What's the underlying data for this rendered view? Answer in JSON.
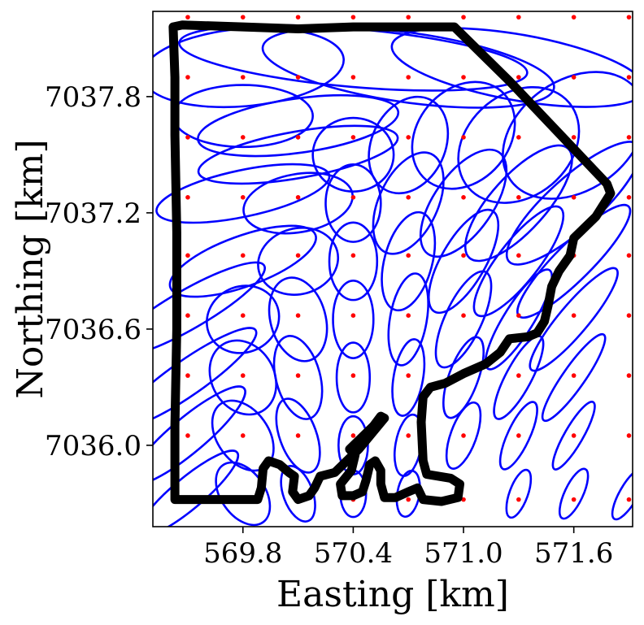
{
  "chart_data": {
    "type": "scatter",
    "xlabel": "Easting [km]",
    "ylabel": "Northing [km]",
    "xlim": [
      569.31,
      571.92
    ],
    "ylim": [
      7035.58,
      7038.24
    ],
    "xticks": [
      569.8,
      570.4,
      571.0,
      571.6
    ],
    "xtick_labels": [
      "569.8",
      "570.4",
      "571.0",
      "571.6"
    ],
    "yticks": [
      7036.0,
      7036.6,
      7037.2,
      7037.8
    ],
    "ytick_labels": [
      "7036.0",
      "7036.6",
      "7037.2",
      "7037.8"
    ],
    "grid": false,
    "colors": {
      "points": "#ff0000",
      "ellipses": "#0000ff",
      "boundary": "#000000"
    },
    "grid_points": {
      "x": [
        569.5,
        569.8,
        570.1,
        570.4,
        570.7,
        571.0,
        571.3,
        571.6,
        571.9
      ],
      "y": [
        7035.72,
        7036.05,
        7036.36,
        7036.67,
        7036.98,
        7037.28,
        7037.59,
        7037.9,
        7038.21
      ]
    },
    "ellipses": [
      {
        "x": 570.4,
        "y": 7038.0,
        "rx": 0.95,
        "ry": 0.15,
        "angle": -5
      },
      {
        "x": 570.7,
        "y": 7037.95,
        "rx": 0.8,
        "ry": 0.18,
        "angle": -8
      },
      {
        "x": 569.8,
        "y": 7037.95,
        "rx": 0.55,
        "ry": 0.2,
        "angle": 5
      },
      {
        "x": 571.3,
        "y": 7037.95,
        "rx": 0.7,
        "ry": 0.17,
        "angle": -10
      },
      {
        "x": 570.1,
        "y": 7037.65,
        "rx": 0.55,
        "ry": 0.14,
        "angle": 8
      },
      {
        "x": 570.4,
        "y": 7037.5,
        "rx": 0.22,
        "ry": 0.19,
        "angle": 0
      },
      {
        "x": 570.1,
        "y": 7037.5,
        "rx": 0.55,
        "ry": 0.12,
        "angle": 10
      },
      {
        "x": 569.8,
        "y": 7037.7,
        "rx": 0.38,
        "ry": 0.16,
        "angle": 0
      },
      {
        "x": 570.7,
        "y": 7037.55,
        "rx": 0.2,
        "ry": 0.26,
        "angle": -25
      },
      {
        "x": 571.0,
        "y": 7037.6,
        "rx": 0.25,
        "ry": 0.3,
        "angle": -40
      },
      {
        "x": 571.3,
        "y": 7037.55,
        "rx": 0.28,
        "ry": 0.34,
        "angle": -50
      },
      {
        "x": 571.6,
        "y": 7037.6,
        "rx": 0.3,
        "ry": 0.4,
        "angle": -55
      },
      {
        "x": 569.8,
        "y": 7037.3,
        "rx": 0.48,
        "ry": 0.12,
        "angle": 12
      },
      {
        "x": 570.1,
        "y": 7037.25,
        "rx": 0.3,
        "ry": 0.15,
        "angle": 10
      },
      {
        "x": 570.4,
        "y": 7037.25,
        "rx": 0.15,
        "ry": 0.2,
        "angle": 0
      },
      {
        "x": 570.7,
        "y": 7037.25,
        "rx": 0.16,
        "ry": 0.28,
        "angle": -25
      },
      {
        "x": 571.0,
        "y": 7037.25,
        "rx": 0.16,
        "ry": 0.32,
        "angle": -35
      },
      {
        "x": 571.3,
        "y": 7037.25,
        "rx": 0.15,
        "ry": 0.38,
        "angle": -42
      },
      {
        "x": 571.6,
        "y": 7037.25,
        "rx": 0.14,
        "ry": 0.45,
        "angle": -48
      },
      {
        "x": 569.8,
        "y": 7036.95,
        "rx": 0.42,
        "ry": 0.13,
        "angle": 20
      },
      {
        "x": 570.1,
        "y": 7036.95,
        "rx": 0.22,
        "ry": 0.17,
        "angle": 15
      },
      {
        "x": 570.4,
        "y": 7036.95,
        "rx": 0.13,
        "ry": 0.2,
        "angle": 0
      },
      {
        "x": 570.7,
        "y": 7036.95,
        "rx": 0.13,
        "ry": 0.26,
        "angle": -15
      },
      {
        "x": 571.0,
        "y": 7036.95,
        "rx": 0.12,
        "ry": 0.3,
        "angle": -30
      },
      {
        "x": 571.3,
        "y": 7036.95,
        "rx": 0.11,
        "ry": 0.35,
        "angle": -38
      },
      {
        "x": 571.6,
        "y": 7036.95,
        "rx": 0.1,
        "ry": 0.4,
        "angle": -45
      },
      {
        "x": 569.5,
        "y": 7036.7,
        "rx": 0.48,
        "ry": 0.1,
        "angle": 30
      },
      {
        "x": 569.8,
        "y": 7036.65,
        "rx": 0.2,
        "ry": 0.17,
        "angle": 25
      },
      {
        "x": 570.1,
        "y": 7036.65,
        "rx": 0.15,
        "ry": 0.22,
        "angle": 15
      },
      {
        "x": 570.4,
        "y": 7036.65,
        "rx": 0.11,
        "ry": 0.2,
        "angle": 0
      },
      {
        "x": 570.7,
        "y": 7036.65,
        "rx": 0.1,
        "ry": 0.24,
        "angle": -10
      },
      {
        "x": 571.0,
        "y": 7036.65,
        "rx": 0.1,
        "ry": 0.27,
        "angle": -25
      },
      {
        "x": 571.3,
        "y": 7036.65,
        "rx": 0.08,
        "ry": 0.3,
        "angle": -32
      },
      {
        "x": 571.6,
        "y": 7036.65,
        "rx": 0.08,
        "ry": 0.34,
        "angle": -40
      },
      {
        "x": 569.5,
        "y": 7036.35,
        "rx": 0.45,
        "ry": 0.09,
        "angle": 35
      },
      {
        "x": 569.8,
        "y": 7036.35,
        "rx": 0.17,
        "ry": 0.2,
        "angle": 30
      },
      {
        "x": 570.1,
        "y": 7036.35,
        "rx": 0.12,
        "ry": 0.22,
        "angle": 15
      },
      {
        "x": 570.4,
        "y": 7036.35,
        "rx": 0.09,
        "ry": 0.18,
        "angle": 0
      },
      {
        "x": 570.7,
        "y": 7036.35,
        "rx": 0.08,
        "ry": 0.2,
        "angle": -10
      },
      {
        "x": 571.0,
        "y": 7036.35,
        "rx": 0.08,
        "ry": 0.22,
        "angle": -20
      },
      {
        "x": 571.3,
        "y": 7036.35,
        "rx": 0.07,
        "ry": 0.24,
        "angle": -28
      },
      {
        "x": 571.6,
        "y": 7036.35,
        "rx": 0.06,
        "ry": 0.27,
        "angle": -35
      },
      {
        "x": 569.5,
        "y": 7036.05,
        "rx": 0.4,
        "ry": 0.09,
        "angle": 40
      },
      {
        "x": 569.8,
        "y": 7036.05,
        "rx": 0.14,
        "ry": 0.2,
        "angle": 35
      },
      {
        "x": 570.1,
        "y": 7036.05,
        "rx": 0.1,
        "ry": 0.2,
        "angle": 20
      },
      {
        "x": 570.4,
        "y": 7036.0,
        "rx": 0.08,
        "ry": 0.15,
        "angle": 0
      },
      {
        "x": 570.7,
        "y": 7036.0,
        "rx": 0.07,
        "ry": 0.16,
        "angle": -10
      },
      {
        "x": 571.0,
        "y": 7036.05,
        "rx": 0.07,
        "ry": 0.18,
        "angle": -20
      },
      {
        "x": 571.3,
        "y": 7036.05,
        "rx": 0.06,
        "ry": 0.19,
        "angle": -25
      },
      {
        "x": 571.6,
        "y": 7036.05,
        "rx": 0.05,
        "ry": 0.2,
        "angle": -30
      },
      {
        "x": 569.5,
        "y": 7035.75,
        "rx": 0.35,
        "ry": 0.08,
        "angle": 40
      },
      {
        "x": 569.8,
        "y": 7035.75,
        "rx": 0.12,
        "ry": 0.18,
        "angle": 35
      },
      {
        "x": 570.1,
        "y": 7035.75,
        "rx": 0.08,
        "ry": 0.15,
        "angle": 20
      },
      {
        "x": 570.4,
        "y": 7035.75,
        "rx": 0.07,
        "ry": 0.12,
        "angle": 0
      },
      {
        "x": 570.7,
        "y": 7035.75,
        "rx": 0.06,
        "ry": 0.12,
        "angle": -10
      },
      {
        "x": 571.3,
        "y": 7035.75,
        "rx": 0.05,
        "ry": 0.13,
        "angle": -20
      },
      {
        "x": 571.6,
        "y": 7035.75,
        "rx": 0.05,
        "ry": 0.14,
        "angle": -25
      },
      {
        "x": 571.9,
        "y": 7035.75,
        "rx": 0.05,
        "ry": 0.15,
        "angle": -30
      }
    ],
    "boundary": [
      [
        569.42,
        7038.16
      ],
      [
        569.47,
        7038.17
      ],
      [
        569.8,
        7038.16
      ],
      [
        570.1,
        7038.15
      ],
      [
        570.4,
        7038.16
      ],
      [
        570.75,
        7038.16
      ],
      [
        570.95,
        7038.16
      ],
      [
        571.25,
        7037.88
      ],
      [
        571.55,
        7037.58
      ],
      [
        571.78,
        7037.35
      ],
      [
        571.8,
        7037.3
      ],
      [
        571.72,
        7037.18
      ],
      [
        571.6,
        7037.07
      ],
      [
        571.58,
        7036.98
      ],
      [
        571.52,
        7036.9
      ],
      [
        571.48,
        7036.82
      ],
      [
        571.46,
        7036.72
      ],
      [
        571.44,
        7036.64
      ],
      [
        571.4,
        7036.58
      ],
      [
        571.35,
        7036.56
      ],
      [
        571.25,
        7036.55
      ],
      [
        571.2,
        7036.48
      ],
      [
        571.12,
        7036.42
      ],
      [
        571.0,
        7036.37
      ],
      [
        570.9,
        7036.32
      ],
      [
        570.82,
        7036.3
      ],
      [
        570.78,
        7036.25
      ],
      [
        570.77,
        7036.12
      ],
      [
        570.78,
        7035.92
      ],
      [
        570.8,
        7035.85
      ],
      [
        570.93,
        7035.83
      ],
      [
        570.98,
        7035.8
      ],
      [
        570.97,
        7035.73
      ],
      [
        570.88,
        7035.71
      ],
      [
        570.78,
        7035.72
      ],
      [
        570.75,
        7035.78
      ],
      [
        570.7,
        7035.76
      ],
      [
        570.63,
        7035.73
      ],
      [
        570.57,
        7035.73
      ],
      [
        570.55,
        7035.8
      ],
      [
        570.55,
        7035.87
      ],
      [
        570.52,
        7035.92
      ],
      [
        570.49,
        7035.9
      ],
      [
        570.47,
        7035.82
      ],
      [
        570.45,
        7035.76
      ],
      [
        570.4,
        7035.74
      ],
      [
        570.34,
        7035.74
      ],
      [
        570.33,
        7035.8
      ],
      [
        570.39,
        7035.87
      ],
      [
        570.41,
        7035.95
      ],
      [
        570.38,
        7035.98
      ],
      [
        570.51,
        7036.1
      ],
      [
        570.55,
        7036.15
      ],
      [
        570.57,
        7036.14
      ],
      [
        570.43,
        7035.98
      ],
      [
        570.3,
        7035.86
      ],
      [
        570.22,
        7035.84
      ],
      [
        570.19,
        7035.78
      ],
      [
        570.16,
        7035.74
      ],
      [
        570.1,
        7035.72
      ],
      [
        570.07,
        7035.76
      ],
      [
        570.08,
        7035.84
      ],
      [
        570.05,
        7035.86
      ],
      [
        570.0,
        7035.9
      ],
      [
        569.94,
        7035.92
      ],
      [
        569.91,
        7035.88
      ],
      [
        569.9,
        7035.78
      ],
      [
        569.88,
        7035.72
      ],
      [
        569.8,
        7035.72
      ],
      [
        569.6,
        7035.72
      ],
      [
        569.43,
        7035.72
      ],
      [
        569.43,
        7036.1
      ],
      [
        569.44,
        7036.6
      ],
      [
        569.44,
        7037.1
      ],
      [
        569.43,
        7037.6
      ],
      [
        569.43,
        7037.9
      ],
      [
        569.42,
        7038.16
      ]
    ]
  }
}
